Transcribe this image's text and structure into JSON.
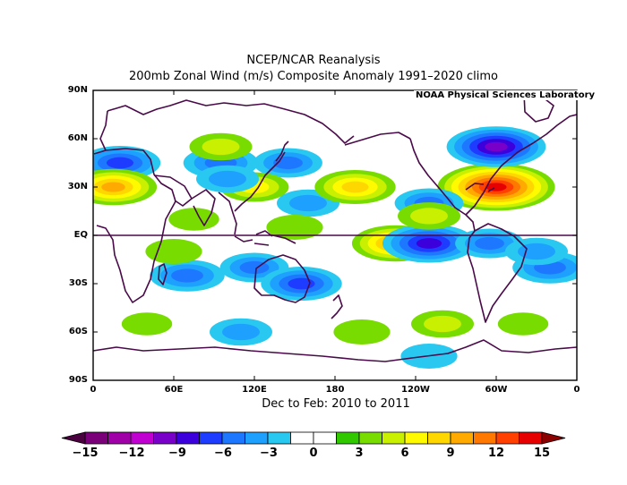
{
  "title": "NCEP/NCAR Reanalysis",
  "subtitle": "200mb Zonal Wind (m/s) Composite Anomaly 1991–2020 climo",
  "period": "Dec to Feb: 2010 to 2011",
  "credit": "NOAA Physical Sciences Laboratory",
  "lat_labels": [
    "90N",
    "60N",
    "30N",
    "EQ",
    "30S",
    "60S",
    "90S"
  ],
  "lon_labels": [
    "0",
    "60E",
    "120E",
    "180",
    "120W",
    "60W",
    "0"
  ],
  "colorbar": {
    "labels": [
      "−15",
      "−12",
      "−9",
      "−6",
      "−3",
      "0",
      "3",
      "6",
      "9",
      "12",
      "15"
    ],
    "colors": [
      "#4b0040",
      "#7a007a",
      "#a000a8",
      "#c000d0",
      "#7800c8",
      "#3c00dc",
      "#1e3cff",
      "#1e78ff",
      "#1ea0ff",
      "#28c8f0",
      "#ffffff",
      "#ffffff",
      "#32c800",
      "#78dc00",
      "#c8f000",
      "#fffa00",
      "#ffd700",
      "#ffaa00",
      "#ff7800",
      "#ff4000",
      "#e60000",
      "#8b0000"
    ]
  },
  "chart_data": {
    "type": "heatmap",
    "title": "NCEP/NCAR Reanalysis",
    "subtitle": "200mb Zonal Wind (m/s) Composite Anomaly 1991–2020 climo",
    "xlabel": "Dec to Feb: 2010 to 2011",
    "ylabel": "",
    "x_ticks": [
      "0",
      "60E",
      "120E",
      "180",
      "120W",
      "60W",
      "0"
    ],
    "y_ticks": [
      "90N",
      "60N",
      "30N",
      "EQ",
      "30S",
      "60S",
      "90S"
    ],
    "xlim": [
      0,
      360
    ],
    "ylim": [
      -90,
      90
    ],
    "colorbar_range": [
      -15,
      15
    ],
    "colorbar_step": 1.5,
    "features": [
      {
        "lon": 300,
        "lat": 30,
        "value": 14
      },
      {
        "lon": 300,
        "lat": 55,
        "value": -11
      },
      {
        "lon": 20,
        "lat": 45,
        "value": -8
      },
      {
        "lon": 250,
        "lat": 20,
        "value": -6
      },
      {
        "lon": 15,
        "lat": 30,
        "value": 9
      },
      {
        "lon": 95,
        "lat": 45,
        "value": -7
      },
      {
        "lon": 145,
        "lat": 45,
        "value": -6
      },
      {
        "lon": 95,
        "lat": 55,
        "value": 5
      },
      {
        "lon": 120,
        "lat": 30,
        "value": 6
      },
      {
        "lon": 100,
        "lat": 35,
        "value": -5
      },
      {
        "lon": 160,
        "lat": 20,
        "value": -5
      },
      {
        "lon": 195,
        "lat": 30,
        "value": 8
      },
      {
        "lon": 225,
        "lat": -5,
        "value": 9
      },
      {
        "lon": 250,
        "lat": -5,
        "value": -10
      },
      {
        "lon": 250,
        "lat": 12,
        "value": 5
      },
      {
        "lon": 295,
        "lat": -5,
        "value": -6
      },
      {
        "lon": 340,
        "lat": -20,
        "value": -7
      },
      {
        "lon": 330,
        "lat": -10,
        "value": -5
      },
      {
        "lon": 70,
        "lat": -25,
        "value": -7
      },
      {
        "lon": 120,
        "lat": -20,
        "value": -6
      },
      {
        "lon": 155,
        "lat": -30,
        "value": -8
      },
      {
        "lon": 110,
        "lat": -60,
        "value": -5
      },
      {
        "lon": 250,
        "lat": -75,
        "value": -4
      },
      {
        "lon": 200,
        "lat": -60,
        "value": 4
      },
      {
        "lon": 260,
        "lat": -55,
        "value": 5
      },
      {
        "lon": 320,
        "lat": -55,
        "value": 3
      },
      {
        "lon": 40,
        "lat": -55,
        "value": 3
      },
      {
        "lon": 60,
        "lat": -10,
        "value": 4
      },
      {
        "lon": 75,
        "lat": 10,
        "value": 3
      },
      {
        "lon": 150,
        "lat": 5,
        "value": 4
      }
    ]
  }
}
